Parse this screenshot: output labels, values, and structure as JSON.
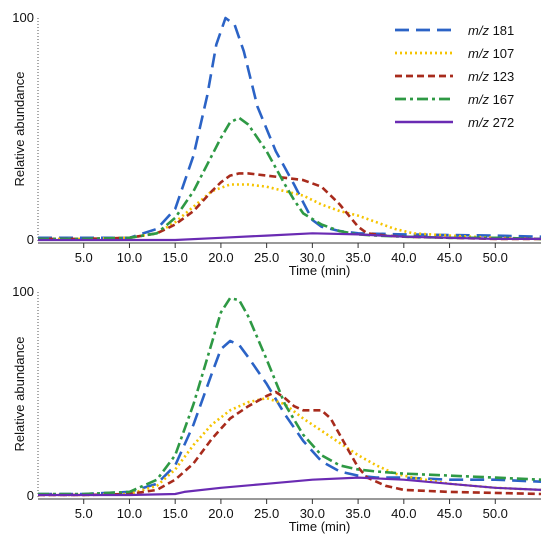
{
  "chart_data": [
    {
      "type": "line",
      "xlabel": "Time (min)",
      "ylabel": "Relative abundance",
      "xlim": [
        0,
        55
      ],
      "ylim": [
        0,
        100
      ],
      "x_ticks": [
        "5.0",
        "10.0",
        "15.0",
        "20.0",
        "25.0",
        "30.0",
        "35.0",
        "40.0",
        "45.0",
        "50.0"
      ],
      "x_tick_values": [
        5,
        10,
        15,
        20,
        25,
        30,
        35,
        40,
        45,
        50
      ],
      "y_ticks": [
        "0",
        "100"
      ],
      "y_tick_values": [
        0,
        100
      ],
      "legend_position": "top-right",
      "legend": [
        {
          "italic": "m/z",
          "label": "181"
        },
        {
          "italic": "m/z",
          "label": "107"
        },
        {
          "italic": "m/z",
          "label": "123"
        },
        {
          "italic": "m/z",
          "label": "167"
        },
        {
          "italic": "m/z",
          "label": "272"
        }
      ],
      "series": [
        {
          "name": "m/z 181",
          "color": "#2b63c6",
          "dash": "long-dash",
          "x": [
            0,
            5,
            10,
            13,
            15,
            17,
            18.5,
            19.5,
            20.5,
            21.5,
            22.5,
            24,
            26,
            28,
            29,
            30,
            31,
            33,
            35,
            40,
            50,
            55
          ],
          "y": [
            1,
            1,
            1,
            5,
            14,
            38,
            65,
            88,
            100,
            97,
            85,
            60,
            40,
            25,
            17,
            9,
            6,
            4,
            3,
            2.5,
            2,
            1.5
          ]
        },
        {
          "name": "m/z 107",
          "color": "#f5c400",
          "dash": "dotted",
          "x": [
            0,
            5,
            10,
            13,
            15,
            17,
            19,
            21,
            23,
            25,
            27,
            29,
            31,
            33,
            35,
            37,
            39,
            41,
            45,
            50,
            55
          ],
          "y": [
            0.5,
            0.5,
            1,
            3,
            8,
            15,
            22,
            25,
            25,
            24,
            22,
            20,
            16,
            13,
            11,
            8,
            5,
            3,
            2,
            1,
            0.5
          ]
        },
        {
          "name": "m/z 123",
          "color": "#a82b1c",
          "dash": "dashed",
          "x": [
            0,
            5,
            10,
            13,
            15,
            17,
            19,
            20,
            21,
            22,
            23,
            25,
            27,
            29,
            31,
            32,
            33,
            34,
            35,
            36,
            38,
            40,
            45,
            50,
            55
          ],
          "y": [
            0.5,
            0.5,
            1,
            3,
            7,
            13,
            22,
            26,
            29,
            30,
            30,
            29,
            28,
            27,
            24,
            20,
            16,
            11,
            6,
            3,
            2,
            1.5,
            1,
            0.5,
            0.5
          ]
        },
        {
          "name": "m/z 167",
          "color": "#2e9944",
          "dash": "dash-dot",
          "x": [
            0,
            5,
            10,
            13,
            15,
            17,
            19,
            20,
            21,
            22,
            23,
            25,
            27,
            28,
            29,
            31,
            33,
            35,
            37,
            40,
            45,
            50,
            55
          ],
          "y": [
            0.5,
            0.5,
            1,
            3,
            10,
            22,
            38,
            46,
            53,
            55,
            52,
            40,
            25,
            18,
            12,
            7,
            4,
            2.5,
            2,
            1.5,
            1,
            1,
            0.5
          ]
        },
        {
          "name": "m/z 272",
          "color": "#6a2bb3",
          "dash": "solid",
          "x": [
            0,
            5,
            10,
            15,
            20,
            25,
            30,
            35,
            40,
            45,
            50,
            55
          ],
          "y": [
            0,
            0,
            0,
            0,
            1,
            2,
            3,
            2.5,
            1.5,
            1,
            0.5,
            0.5
          ]
        }
      ]
    },
    {
      "type": "line",
      "xlabel": "Time (min)",
      "ylabel": "Relative abundance",
      "xlim": [
        0,
        55
      ],
      "ylim": [
        0,
        100
      ],
      "x_ticks": [
        "5.0",
        "10.0",
        "15.0",
        "20.0",
        "25.0",
        "30.0",
        "35.0",
        "40.0",
        "45.0",
        "50.0"
      ],
      "x_tick_values": [
        5,
        10,
        15,
        20,
        25,
        30,
        35,
        40,
        45,
        50
      ],
      "y_ticks": [
        "0",
        "100"
      ],
      "y_tick_values": [
        0,
        100
      ],
      "series": [
        {
          "name": "m/z 181",
          "color": "#2b63c6",
          "dash": "long-dash",
          "x": [
            0,
            5,
            10,
            13,
            15,
            17,
            19,
            20,
            21,
            22,
            23,
            25,
            27,
            29,
            31,
            33,
            35,
            37,
            40,
            45,
            50,
            55
          ],
          "y": [
            1,
            1,
            2,
            6,
            15,
            35,
            60,
            72,
            76,
            74,
            68,
            55,
            40,
            27,
            17,
            12,
            10,
            9,
            9,
            8,
            8,
            7
          ]
        },
        {
          "name": "m/z 107",
          "color": "#f5c400",
          "dash": "dotted",
          "x": [
            0,
            5,
            10,
            13,
            15,
            17,
            19,
            21,
            23,
            25,
            27,
            29,
            31,
            33,
            35,
            37,
            39,
            41,
            45,
            50,
            55
          ],
          "y": [
            0.5,
            0.5,
            1,
            5,
            13,
            25,
            35,
            42,
            46,
            48,
            45,
            38,
            32,
            26,
            20,
            15,
            11,
            9,
            6,
            4,
            3
          ]
        },
        {
          "name": "m/z 123",
          "color": "#a82b1c",
          "dash": "dashed",
          "x": [
            0,
            5,
            10,
            13,
            15,
            17,
            19,
            21,
            23,
            25,
            26,
            27,
            28,
            29,
            30,
            31,
            32,
            33,
            34,
            35,
            36,
            38,
            40,
            45,
            50,
            55
          ],
          "y": [
            0.5,
            0.5,
            1,
            3,
            8,
            16,
            28,
            38,
            44,
            49,
            51,
            48,
            44,
            42,
            42,
            42,
            38,
            30,
            22,
            14,
            9,
            5,
            3,
            2,
            1.5,
            1
          ]
        },
        {
          "name": "m/z 167",
          "color": "#2e9944",
          "dash": "dash-dot",
          "x": [
            0,
            5,
            10,
            13,
            15,
            17,
            19,
            20,
            21,
            22,
            23,
            25,
            27,
            29,
            31,
            33,
            35,
            37,
            40,
            45,
            50,
            55
          ],
          "y": [
            1,
            1,
            2,
            8,
            20,
            45,
            75,
            90,
            97,
            96,
            88,
            67,
            45,
            30,
            20,
            15,
            13,
            12,
            11,
            10,
            9,
            8
          ]
        },
        {
          "name": "m/z 272",
          "color": "#6a2bb3",
          "dash": "solid",
          "x": [
            0,
            5,
            10,
            15,
            16,
            20,
            25,
            30,
            35,
            40,
            45,
            50,
            55
          ],
          "y": [
            0.5,
            0.5,
            0.5,
            1,
            2,
            4,
            6,
            8,
            9,
            8,
            6,
            4,
            3
          ]
        }
      ]
    }
  ]
}
